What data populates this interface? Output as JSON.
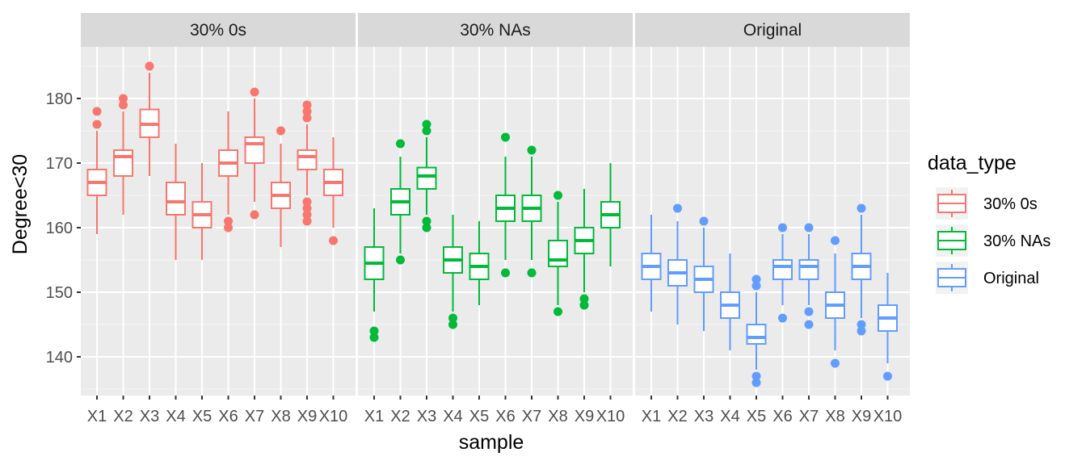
{
  "chart_data": {
    "type": "boxplot",
    "facet_by": "data_type",
    "xlabel": "sample",
    "ylabel": "Degree<30",
    "ylim": [
      134,
      188
    ],
    "yticks": [
      140,
      150,
      160,
      170,
      180
    ],
    "categories": [
      "X1",
      "X2",
      "X3",
      "X4",
      "X5",
      "X6",
      "X7",
      "X8",
      "X9",
      "X10"
    ],
    "legend": {
      "title": "data_type",
      "position": "right",
      "entries": [
        {
          "label": "30% 0s",
          "color": "#F8766D"
        },
        {
          "label": "30% NAs",
          "color": "#00BA38"
        },
        {
          "label": "Original",
          "color": "#619CFF"
        }
      ]
    },
    "panels": [
      {
        "label": "30% 0s",
        "color": "#F8766D",
        "boxes": [
          {
            "sample": "X1",
            "low": 159,
            "q1": 165,
            "median": 167,
            "q3": 169,
            "high": 175,
            "outliers": [
              176,
              178
            ]
          },
          {
            "sample": "X2",
            "low": 162,
            "q1": 168,
            "median": 171,
            "q3": 172,
            "high": 178,
            "outliers": [
              179,
              180
            ]
          },
          {
            "sample": "X3",
            "low": 168,
            "q1": 174,
            "median": 176,
            "q3": 178.3,
            "high": 184,
            "outliers": [
              185
            ]
          },
          {
            "sample": "X4",
            "low": 155,
            "q1": 162,
            "median": 164,
            "q3": 167,
            "high": 173,
            "outliers": []
          },
          {
            "sample": "X5",
            "low": 155,
            "q1": 160,
            "median": 162,
            "q3": 164,
            "high": 170,
            "outliers": []
          },
          {
            "sample": "X6",
            "low": 162,
            "q1": 168,
            "median": 170,
            "q3": 172,
            "high": 178,
            "outliers": [
              160,
              161
            ]
          },
          {
            "sample": "X7",
            "low": 164,
            "q1": 170,
            "median": 173,
            "q3": 174,
            "high": 180,
            "outliers": [
              162,
              181
            ]
          },
          {
            "sample": "X8",
            "low": 157,
            "q1": 163,
            "median": 165,
            "q3": 167,
            "high": 173,
            "outliers": [
              175
            ]
          },
          {
            "sample": "X9",
            "low": 165,
            "q1": 169,
            "median": 171,
            "q3": 172,
            "high": 176,
            "outliers": [
              161,
              162,
              163,
              164,
              177,
              178,
              179
            ]
          },
          {
            "sample": "X10",
            "low": 160,
            "q1": 165,
            "median": 167,
            "q3": 169,
            "high": 174,
            "outliers": [
              158
            ]
          }
        ]
      },
      {
        "label": "30% NAs",
        "color": "#00BA38",
        "boxes": [
          {
            "sample": "X1",
            "low": 147,
            "q1": 152,
            "median": 154.5,
            "q3": 157,
            "high": 163,
            "outliers": [
              143,
              144
            ]
          },
          {
            "sample": "X2",
            "low": 156,
            "q1": 162,
            "median": 164,
            "q3": 166,
            "high": 171,
            "outliers": [
              155,
              173
            ]
          },
          {
            "sample": "X3",
            "low": 162,
            "q1": 166,
            "median": 168,
            "q3": 169.3,
            "high": 174,
            "outliers": [
              160,
              161,
              175,
              176
            ]
          },
          {
            "sample": "X4",
            "low": 147,
            "q1": 153,
            "median": 155,
            "q3": 157,
            "high": 162,
            "outliers": [
              145,
              146
            ]
          },
          {
            "sample": "X5",
            "low": 148,
            "q1": 152,
            "median": 154,
            "q3": 156,
            "high": 161,
            "outliers": []
          },
          {
            "sample": "X6",
            "low": 155,
            "q1": 161,
            "median": 163,
            "q3": 165,
            "high": 171,
            "outliers": [
              153,
              174
            ]
          },
          {
            "sample": "X7",
            "low": 155,
            "q1": 161,
            "median": 163,
            "q3": 165,
            "high": 171,
            "outliers": [
              153,
              172
            ]
          },
          {
            "sample": "X8",
            "low": 148,
            "q1": 154,
            "median": 155,
            "q3": 158,
            "high": 164,
            "outliers": [
              147,
              165
            ]
          },
          {
            "sample": "X9",
            "low": 150,
            "q1": 156,
            "median": 158,
            "q3": 160,
            "high": 166,
            "outliers": [
              148,
              149
            ]
          },
          {
            "sample": "X10",
            "low": 154,
            "q1": 160,
            "median": 162,
            "q3": 164,
            "high": 170,
            "outliers": []
          }
        ]
      },
      {
        "label": "Original",
        "color": "#619CFF",
        "boxes": [
          {
            "sample": "X1",
            "low": 147,
            "q1": 152,
            "median": 154,
            "q3": 156,
            "high": 162,
            "outliers": []
          },
          {
            "sample": "X2",
            "low": 145,
            "q1": 151,
            "median": 153,
            "q3": 155,
            "high": 161,
            "outliers": [
              163
            ]
          },
          {
            "sample": "X3",
            "low": 144,
            "q1": 150,
            "median": 152,
            "q3": 154,
            "high": 160,
            "outliers": [
              161
            ]
          },
          {
            "sample": "X4",
            "low": 141,
            "q1": 146,
            "median": 148,
            "q3": 150,
            "high": 156,
            "outliers": []
          },
          {
            "sample": "X5",
            "low": 138,
            "q1": 142,
            "median": 143,
            "q3": 145,
            "high": 150,
            "outliers": [
              136,
              137,
              151,
              152
            ]
          },
          {
            "sample": "X6",
            "low": 148,
            "q1": 152,
            "median": 154,
            "q3": 155,
            "high": 159,
            "outliers": [
              146,
              160
            ]
          },
          {
            "sample": "X7",
            "low": 148,
            "q1": 152,
            "median": 154,
            "q3": 155,
            "high": 159,
            "outliers": [
              145,
              147,
              160
            ]
          },
          {
            "sample": "X8",
            "low": 141,
            "q1": 146,
            "median": 148,
            "q3": 150,
            "high": 156,
            "outliers": [
              139,
              158
            ]
          },
          {
            "sample": "X9",
            "low": 146,
            "q1": 152,
            "median": 154,
            "q3": 156,
            "high": 162,
            "outliers": [
              144,
              145,
              163
            ]
          },
          {
            "sample": "X10",
            "low": 139,
            "q1": 144,
            "median": 146,
            "q3": 148,
            "high": 153,
            "outliers": [
              137
            ]
          }
        ]
      }
    ]
  }
}
